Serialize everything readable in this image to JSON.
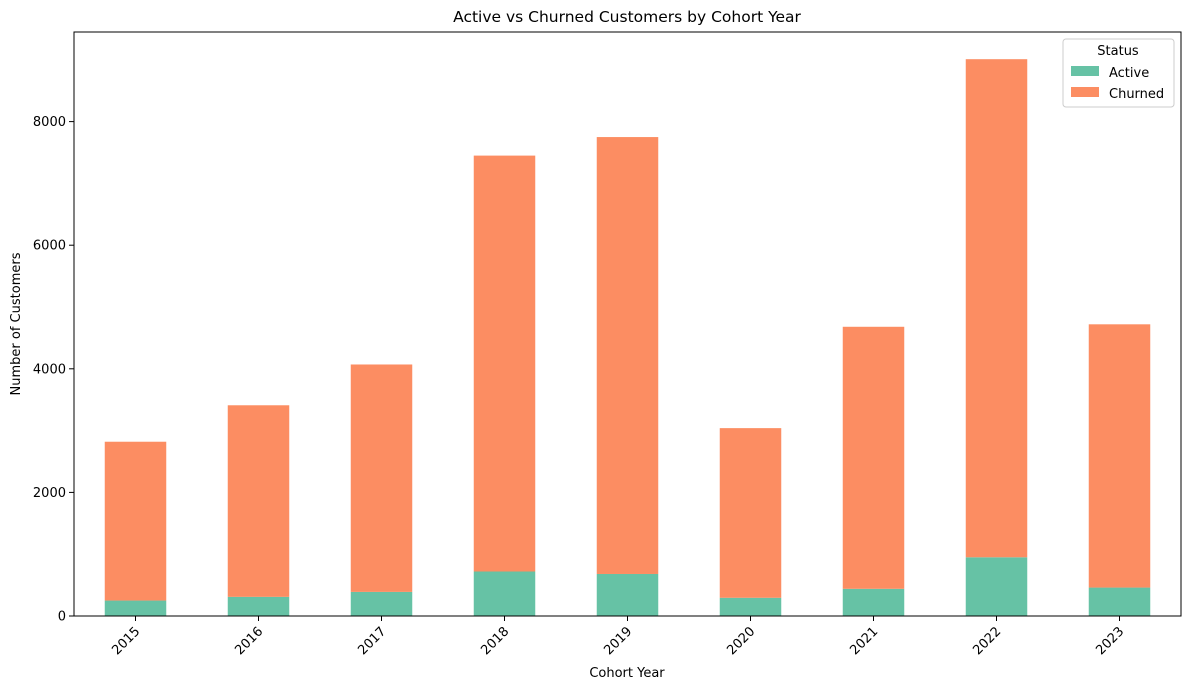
{
  "chart_data": {
    "type": "bar",
    "stacked": true,
    "title": "Active vs Churned Customers by Cohort Year",
    "xlabel": "Cohort Year",
    "ylabel": "Number of Customers",
    "categories": [
      "2015",
      "2016",
      "2017",
      "2018",
      "2019",
      "2020",
      "2021",
      "2022",
      "2023"
    ],
    "series": [
      {
        "name": "Active",
        "color": "#66c2a5",
        "values": [
          250,
          310,
          390,
          720,
          680,
          295,
          440,
          950,
          460
        ]
      },
      {
        "name": "Churned",
        "color": "#fc8d62",
        "values": [
          2570,
          3100,
          3680,
          6730,
          7070,
          2745,
          4240,
          8060,
          4260
        ]
      }
    ],
    "ylim": [
      0,
      9450
    ],
    "yticks": [
      0,
      2000,
      4000,
      6000,
      8000
    ],
    "ytick_labels": [
      "0",
      "2000",
      "4000",
      "6000",
      "8000"
    ],
    "grid": false,
    "legend": {
      "title": "Status",
      "placement": "top-right",
      "entries": [
        "Active",
        "Churned"
      ]
    }
  }
}
